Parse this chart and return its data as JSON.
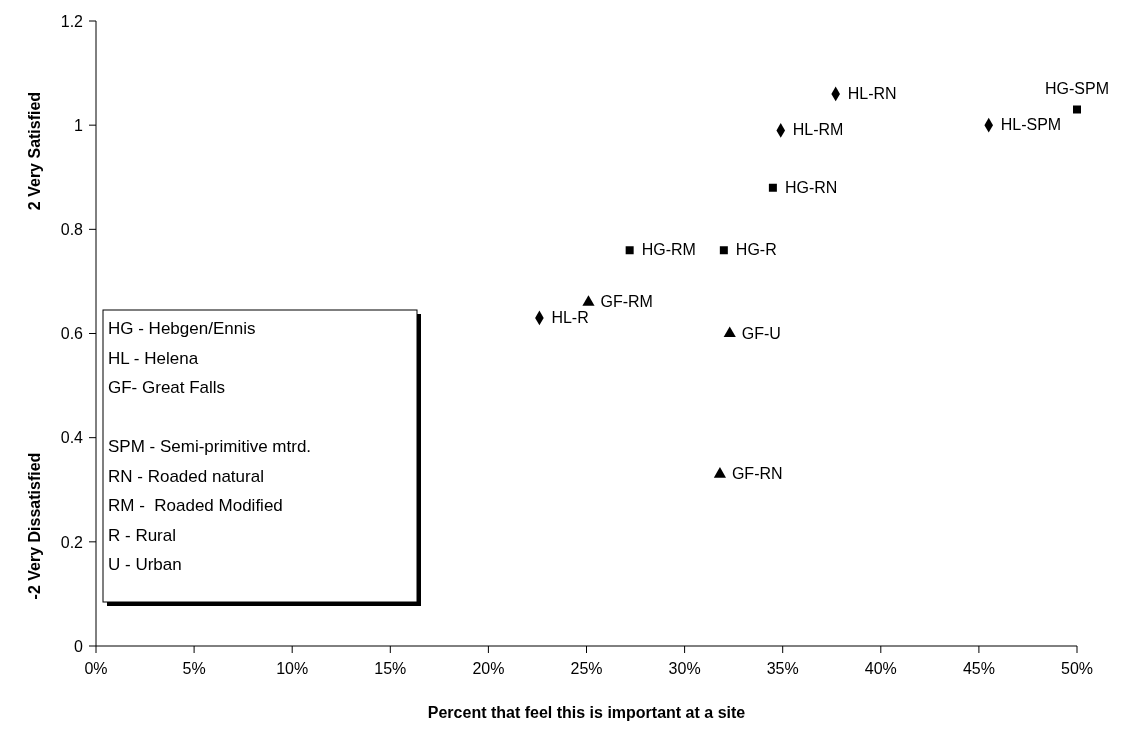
{
  "chart_data": {
    "type": "scatter",
    "xlabel": "Percent that feel this is important at a site",
    "ylabel": "2 Very Satisfied",
    "xlim": [
      0,
      50
    ],
    "xticks": [
      {
        "value": 0,
        "label": "0%"
      },
      {
        "value": 5,
        "label": "5%"
      },
      {
        "value": 10,
        "label": "10%"
      },
      {
        "value": 15,
        "label": "15%"
      },
      {
        "value": 20,
        "label": "20%"
      },
      {
        "value": 25,
        "label": "25%"
      },
      {
        "value": 30,
        "label": "30%"
      },
      {
        "value": 35,
        "label": "35%"
      },
      {
        "value": 40,
        "label": "40%"
      },
      {
        "value": 45,
        "label": "45%"
      },
      {
        "value": 50,
        "label": "50%"
      }
    ],
    "ylim": [
      0,
      1.2
    ],
    "yticks": [
      0,
      0.2,
      0.4,
      0.6,
      0.8,
      1,
      1.2
    ],
    "grid": false,
    "legend": false,
    "series": [
      {
        "color": "#000000",
        "marker": "square",
        "x": [
          27.2,
          32.0,
          34.5,
          50.0
        ],
        "values": [
          0.76,
          0.76,
          0.88,
          1.03
        ]
      },
      {
        "color": "#000000",
        "marker": "diamond",
        "x": [
          22.6,
          34.9,
          37.7,
          45.5
        ],
        "values": [
          0.63,
          0.99,
          1.06,
          1.0
        ]
      },
      {
        "color": "#000000",
        "marker": "triangle",
        "x": [
          25.1,
          31.8,
          32.3
        ],
        "values": [
          0.66,
          0.33,
          0.6
        ]
      }
    ],
    "annotations": [
      "-2 Very Dissatisfied",
      "HG - Hebgen/Ennis\nHL - Helena\nGF- Great Falls\n\nSPM - Semi-primitive mtrd.\nRN - Roaded natural\nRM -  Roaded Modified\nR - Rural\nU - Urban",
      {
        "text": "HL-SPM",
        "x": 45.5,
        "y": 1.0
      },
      {
        "text": "HG-SPM",
        "x": 50.0,
        "y": 1.03
      },
      {
        "text": "HL-RN",
        "x": 37.7,
        "y": 1.06
      },
      {
        "text": "HL-RM",
        "x": 34.9,
        "y": 0.99
      },
      {
        "text": "HG-RN",
        "x": 34.5,
        "y": 0.88
      },
      {
        "text": "HG-RM",
        "x": 27.2,
        "y": 0.76
      },
      {
        "text": "HG-R",
        "x": 32.0,
        "y": 0.76
      },
      {
        "text": "GF-RM",
        "x": 25.1,
        "y": 0.66
      },
      {
        "text": "HL-R",
        "x": 22.6,
        "y": 0.63
      },
      {
        "text": "GF-U",
        "x": 32.3,
        "y": 0.6
      },
      {
        "text": "GF-RN",
        "x": 31.8,
        "y": 0.33
      }
    ]
  }
}
